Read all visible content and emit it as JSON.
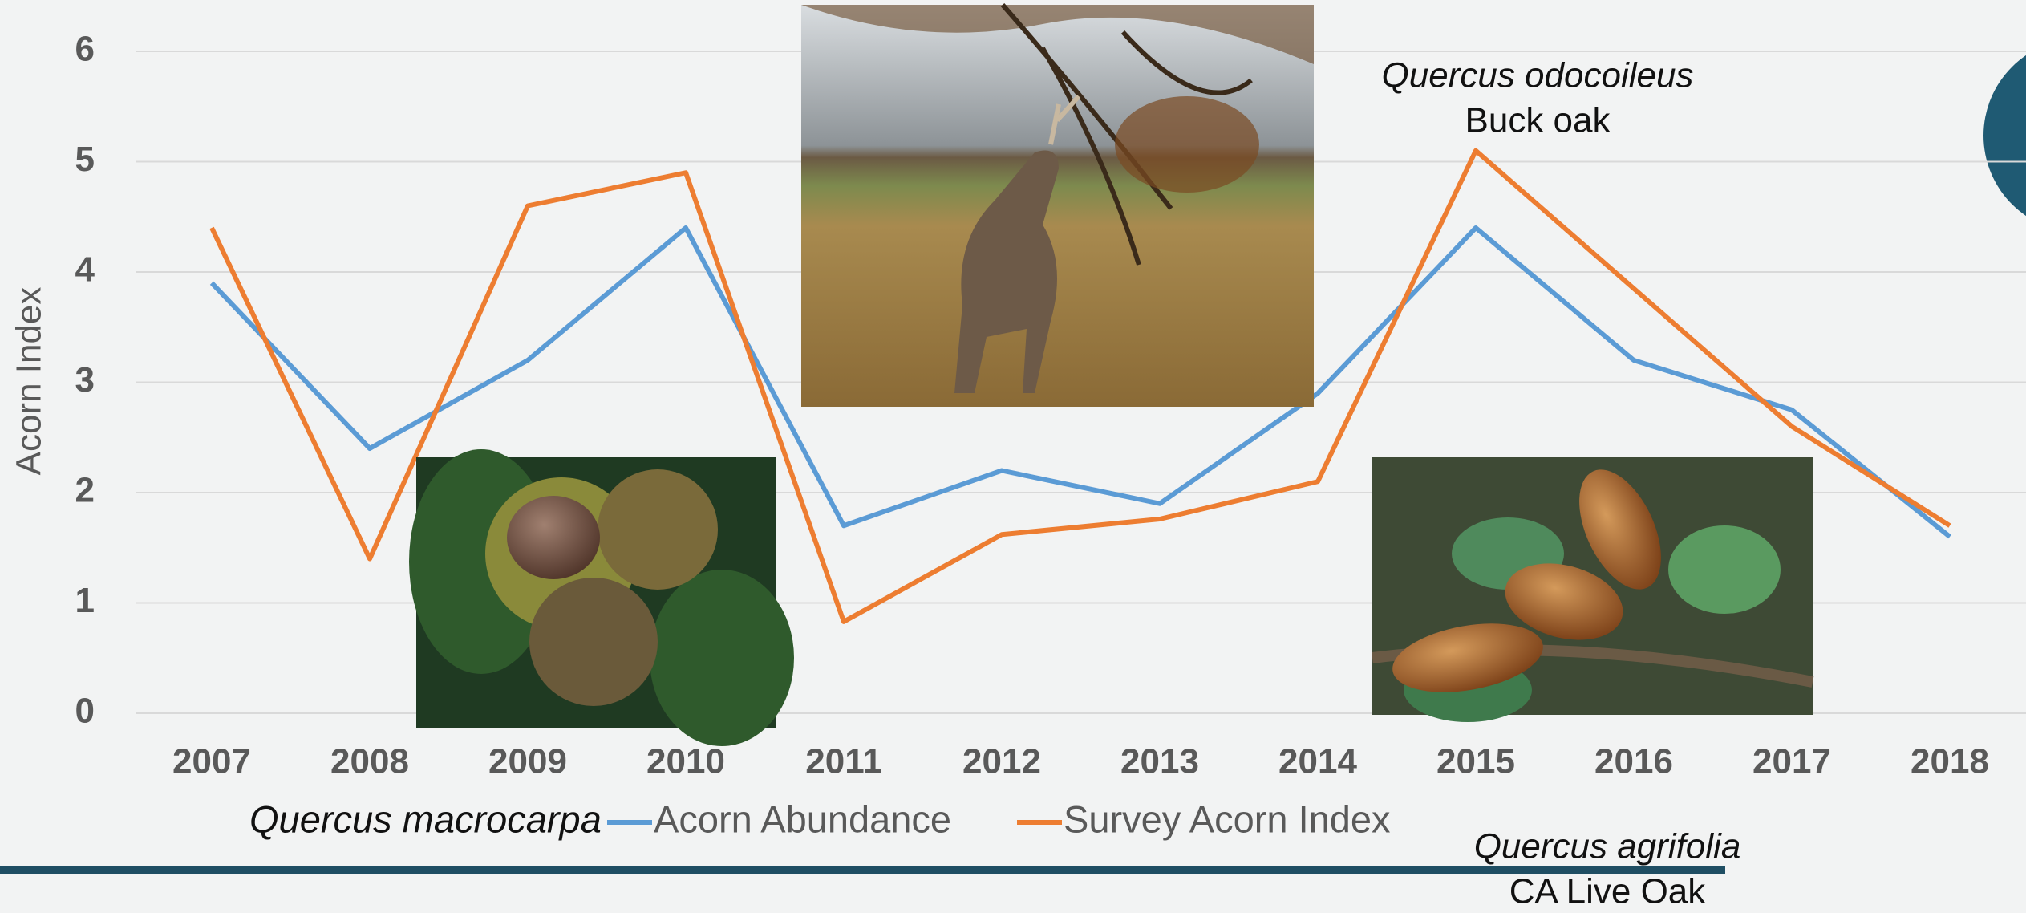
{
  "chart_data": {
    "type": "line",
    "y_label": "Acorn Index",
    "categories": [
      "2007",
      "2008",
      "2009",
      "2010",
      "2011",
      "2012",
      "2013",
      "2014",
      "2015",
      "2016",
      "2017",
      "2018"
    ],
    "series": [
      {
        "name": "Acorn Abundance",
        "color": "#5b9bd5",
        "values": [
          3.9,
          2.4,
          3.2,
          4.4,
          1.7,
          2.2,
          1.9,
          2.9,
          4.4,
          3.2,
          2.75,
          1.6
        ]
      },
      {
        "name": "Survey Acorn Index",
        "color": "#ed7d31",
        "values": [
          4.4,
          1.4,
          4.6,
          4.9,
          0.83,
          1.62,
          1.76,
          2.1,
          5.1,
          3.85,
          2.6,
          1.7
        ]
      }
    ],
    "ylim": [
      0,
      6
    ],
    "yticks": [
      0,
      1,
      2,
      3,
      4,
      5,
      6
    ],
    "grid": true,
    "legend_label": "Quercus macrocarpa",
    "annotations": [
      "Quercus odocoileus",
      "Buck oak",
      "Quercus agrifolia",
      "CA Live Oak"
    ]
  }
}
